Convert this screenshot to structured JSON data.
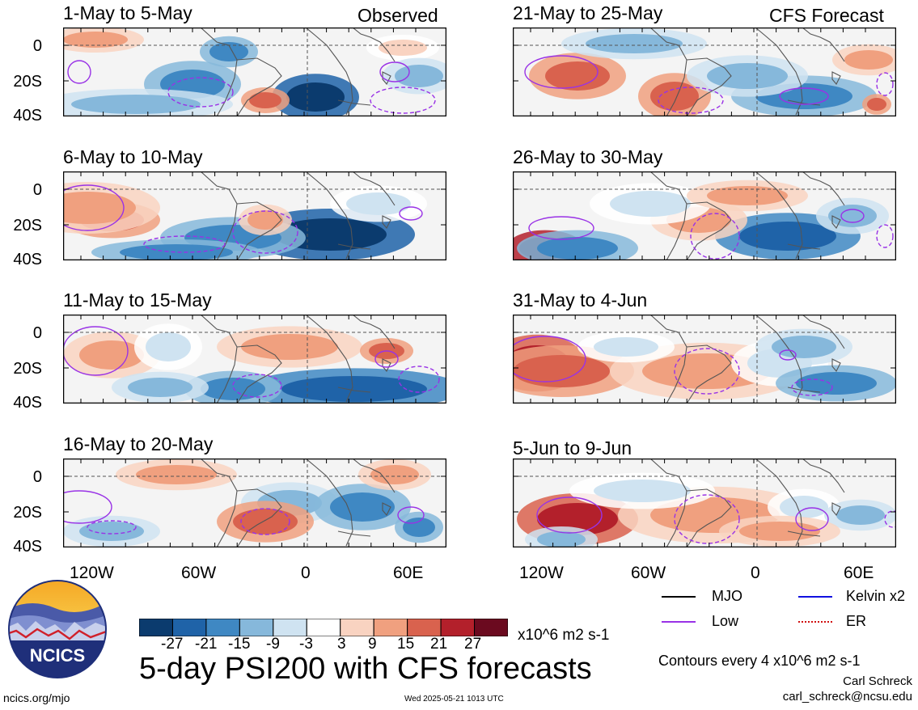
{
  "title": "5-day PSI200 with CFS forecasts",
  "column_labels": {
    "observed": "Observed",
    "forecast": "CFS Forecast"
  },
  "panels_left": [
    "1-May to 5-May",
    "6-May to 10-May",
    "11-May to 15-May",
    "16-May to 20-May"
  ],
  "panels_right": [
    "21-May to 25-May",
    "26-May to 30-May",
    "31-May to 4-Jun",
    "5-Jun to 9-Jun"
  ],
  "y_ticks": [
    "0",
    "20S",
    "40S"
  ],
  "x_ticks": [
    "120W",
    "60W",
    "0",
    "60E"
  ],
  "legend": [
    {
      "label": "MJO",
      "color": "#000000"
    },
    {
      "label": "Kelvin x2",
      "color": "#1010e0"
    },
    {
      "label": "Low",
      "color": "#9932e6"
    },
    {
      "label": "ER",
      "color": "#d01010"
    }
  ],
  "colorbar": {
    "ticks": [
      "-27",
      "-21",
      "-15",
      "-9",
      "-3",
      "3",
      "9",
      "15",
      "21",
      "27"
    ],
    "colors": [
      "#0b3b6e",
      "#1f63a8",
      "#3f88c3",
      "#86b8db",
      "#cfe3f1",
      "#ffffff",
      "#f9d3c1",
      "#f0a07f",
      "#d9624e",
      "#b3202b",
      "#6b0a1f"
    ],
    "units": "x10^6 m2 s-1"
  },
  "contour_note": "Contours every 4 x10^6 m2 s-1",
  "logo": {
    "text": "NCICS"
  },
  "footer": {
    "url": "ncics.org/mjo",
    "timestamp": "Wed 2025-05-21 1013 UTC",
    "author": "Carl Schreck",
    "email": "carl_schreck@ncsu.edu"
  },
  "chart_data": {
    "type": "heatmap",
    "variable": "5-day PSI200 anomaly",
    "units": "x10^6 m2 s-1",
    "lon_range": [
      "150W",
      "90E"
    ],
    "lat_range": [
      "10N",
      "40S"
    ],
    "x_ticks": [
      "120W",
      "60W",
      "0",
      "60E"
    ],
    "y_ticks": [
      "0",
      "20S",
      "40S"
    ],
    "levels": [
      -27,
      -21,
      -15,
      -9,
      -3,
      3,
      9,
      15,
      21,
      27
    ],
    "panels": [
      {
        "period": "1-May to 5-May",
        "source": "Observed"
      },
      {
        "period": "6-May to 10-May",
        "source": "Observed"
      },
      {
        "period": "11-May to 15-May",
        "source": "Observed"
      },
      {
        "period": "16-May to 20-May",
        "source": "Observed"
      },
      {
        "period": "21-May to 25-May",
        "source": "CFS Forecast"
      },
      {
        "period": "26-May to 30-May",
        "source": "CFS Forecast"
      },
      {
        "period": "31-May to 4-Jun",
        "source": "CFS Forecast"
      },
      {
        "period": "5-Jun to 9-Jun",
        "source": "CFS Forecast"
      }
    ]
  }
}
